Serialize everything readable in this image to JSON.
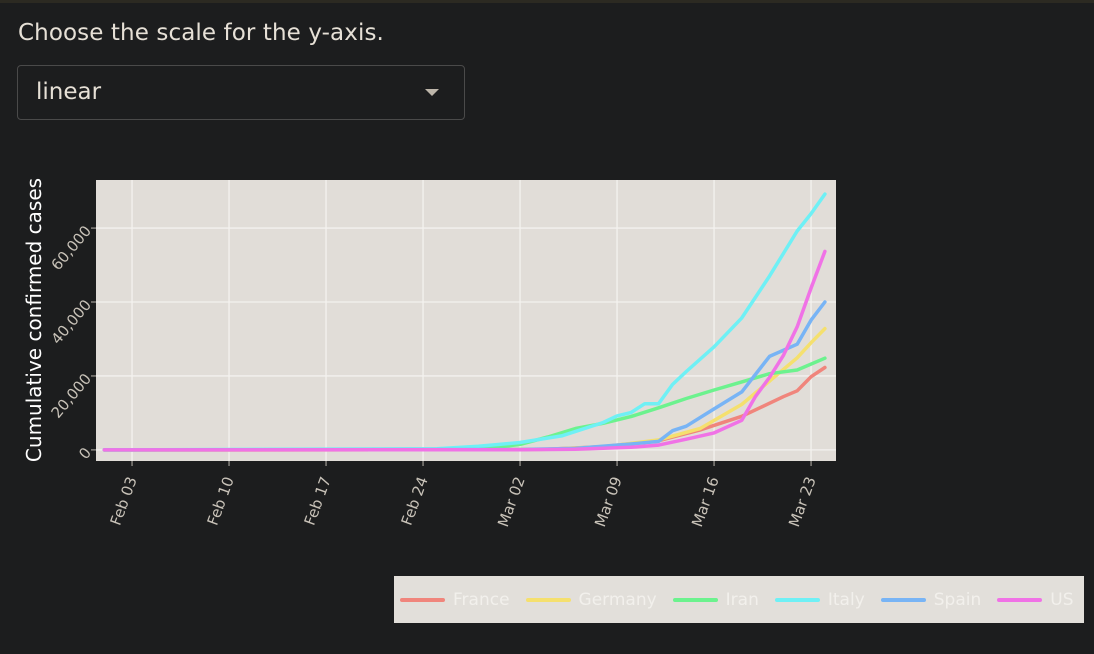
{
  "prompt": "Choose the scale for the y-axis.",
  "scale_select": {
    "value": "linear"
  },
  "chart_data": {
    "type": "line",
    "ylabel": "Cumulative confirmed cases",
    "xlabel": "",
    "x_ticks": [
      "Feb 03",
      "Feb 10",
      "Feb 17",
      "Feb 24",
      "Mar 02",
      "Mar 09",
      "Mar 16",
      "Mar 23"
    ],
    "y_ticks": [
      "0",
      "20,000",
      "40,000",
      "60,000"
    ],
    "y_tick_values": [
      0,
      20000,
      40000,
      60000
    ],
    "ylim": [
      -3000,
      73000
    ],
    "x_range_days": [
      -0.6,
      52.8
    ],
    "x_tick_days": [
      2,
      9,
      16,
      23,
      30,
      37,
      44,
      51
    ],
    "grid": true,
    "legend_position": "bottom-right",
    "series": [
      {
        "name": "France",
        "color": "#f0857c",
        "days": [
          0,
          28,
          32,
          36,
          40,
          43,
          46,
          49,
          50,
          51,
          52
        ],
        "values": [
          0,
          50,
          200,
          900,
          2500,
          5400,
          9100,
          14400,
          16000,
          19800,
          22300
        ]
      },
      {
        "name": "Germany",
        "color": "#f5e06e",
        "days": [
          0,
          28,
          32,
          36,
          40,
          43,
          46,
          48,
          50,
          51,
          52
        ],
        "values": [
          0,
          50,
          200,
          800,
          2700,
          5800,
          12300,
          18600,
          24900,
          29000,
          32800
        ]
      },
      {
        "name": "Iran",
        "color": "#6cf28e",
        "days": [
          0,
          26,
          28,
          30,
          32,
          34,
          36,
          38,
          40,
          42,
          44,
          46,
          48,
          50,
          52
        ],
        "values": [
          0,
          100,
          600,
          1500,
          3500,
          5800,
          7200,
          9000,
          11400,
          13900,
          16200,
          18400,
          20600,
          21600,
          24800
        ]
      },
      {
        "name": "Italy",
        "color": "#6ff0f5",
        "days": [
          0,
          24,
          27,
          30,
          33,
          36,
          37,
          38,
          39,
          40,
          41,
          42,
          44,
          46,
          48,
          50,
          51,
          52
        ],
        "values": [
          0,
          300,
          1000,
          2000,
          3800,
          7400,
          9200,
          10100,
          12500,
          12500,
          17700,
          21200,
          27900,
          35700,
          47000,
          59200,
          63900,
          69200
        ]
      },
      {
        "name": "Spain",
        "color": "#78b4f5",
        "days": [
          0,
          30,
          34,
          38,
          40,
          41,
          42,
          44,
          46,
          48,
          50,
          51,
          52
        ],
        "values": [
          0,
          100,
          400,
          1600,
          2300,
          5200,
          6400,
          11100,
          15700,
          25300,
          28600,
          35100,
          40000
        ]
      },
      {
        "name": "US",
        "color": "#f072e6",
        "days": [
          0,
          30,
          34,
          38,
          40,
          42,
          44,
          46,
          47,
          48,
          49,
          50,
          51,
          52
        ],
        "values": [
          0,
          50,
          200,
          700,
          1300,
          2900,
          4600,
          8000,
          14500,
          19600,
          25500,
          33300,
          43800,
          53700
        ]
      }
    ]
  },
  "legend": [
    {
      "label": "France",
      "color": "#f0857c"
    },
    {
      "label": "Germany",
      "color": "#f5e06e"
    },
    {
      "label": "Iran",
      "color": "#6cf28e"
    },
    {
      "label": "Italy",
      "color": "#6ff0f5"
    },
    {
      "label": "Spain",
      "color": "#78b4f5"
    },
    {
      "label": "US",
      "color": "#f072e6"
    }
  ]
}
